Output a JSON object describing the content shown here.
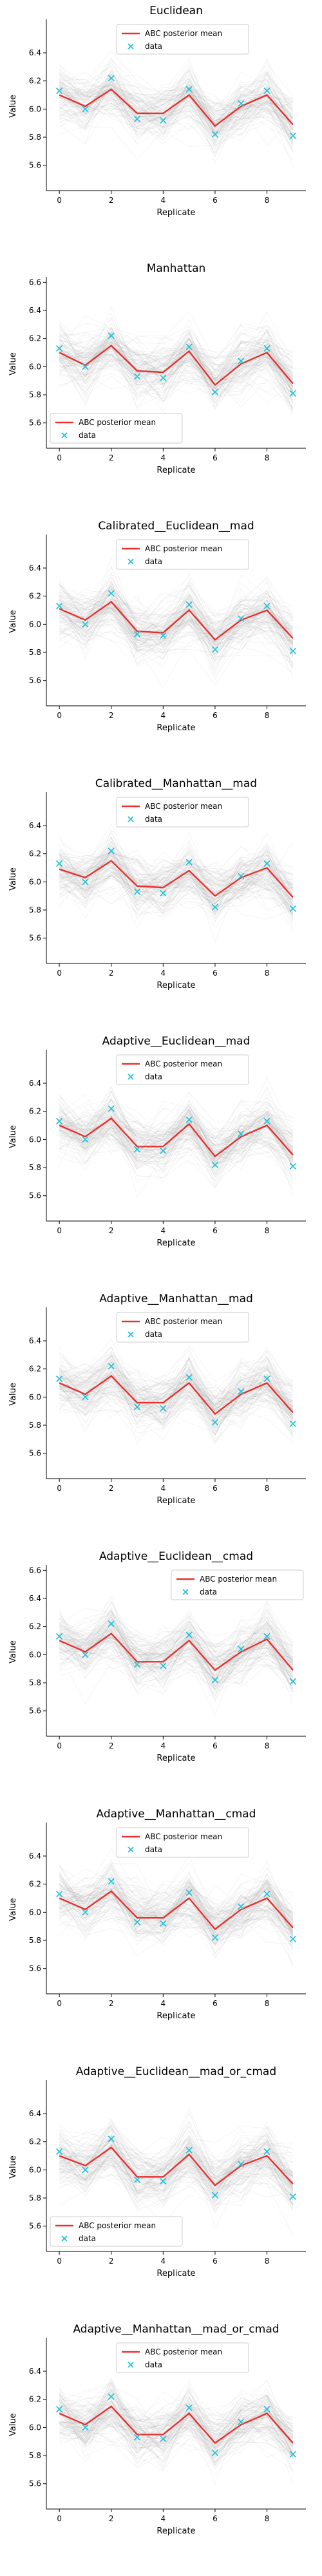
{
  "figure": {
    "ylabel": "Value",
    "xlabel": "Replicate",
    "legend_mean": "ABC posterior mean",
    "legend_data": "data",
    "colors": {
      "mean": "#e8312f",
      "data": "#29c3d9",
      "band": "#9a9a9a"
    }
  },
  "chart_data": [
    {
      "type": "line",
      "title": "Euclidean",
      "xlabel": "Replicate",
      "ylabel": "Value",
      "x": [
        0,
        1,
        2,
        3,
        4,
        5,
        6,
        7,
        8,
        9
      ],
      "series": [
        {
          "name": "ABC posterior mean",
          "values": [
            6.1,
            6.02,
            6.14,
            5.97,
            5.97,
            6.1,
            5.88,
            6.02,
            6.1,
            5.89
          ]
        },
        {
          "name": "data",
          "values": [
            6.13,
            6.0,
            6.22,
            5.93,
            5.92,
            6.14,
            5.82,
            6.04,
            6.13,
            5.81
          ]
        }
      ],
      "ylim": [
        5.42,
        6.62
      ],
      "yticks": [
        5.6,
        5.8,
        6.0,
        6.2,
        6.4
      ],
      "xticks": [
        0,
        2,
        4,
        6,
        8
      ],
      "legend": "top-center"
    },
    {
      "type": "line",
      "title": "Manhattan",
      "xlabel": "Replicate",
      "ylabel": "Value",
      "x": [
        0,
        1,
        2,
        3,
        4,
        5,
        6,
        7,
        8,
        9
      ],
      "series": [
        {
          "name": "ABC posterior mean",
          "values": [
            6.1,
            6.01,
            6.15,
            5.97,
            5.96,
            6.11,
            5.87,
            6.02,
            6.1,
            5.88
          ]
        },
        {
          "name": "data",
          "values": [
            6.13,
            6.0,
            6.22,
            5.93,
            5.92,
            6.14,
            5.82,
            6.04,
            6.13,
            5.81
          ]
        }
      ],
      "ylim": [
        5.42,
        6.62
      ],
      "yticks": [
        5.6,
        5.8,
        6.0,
        6.2,
        6.4,
        6.6
      ],
      "xticks": [
        0,
        2,
        4,
        6,
        8
      ],
      "legend": "lower-left"
    },
    {
      "type": "line",
      "title": "Calibrated__Euclidean__mad",
      "xlabel": "Replicate",
      "ylabel": "Value",
      "x": [
        0,
        1,
        2,
        3,
        4,
        5,
        6,
        7,
        8,
        9
      ],
      "series": [
        {
          "name": "ABC posterior mean",
          "values": [
            6.11,
            6.03,
            6.16,
            5.95,
            5.94,
            6.1,
            5.89,
            6.03,
            6.1,
            5.9
          ]
        },
        {
          "name": "data",
          "values": [
            6.13,
            6.0,
            6.22,
            5.93,
            5.92,
            6.14,
            5.82,
            6.04,
            6.13,
            5.81
          ]
        }
      ],
      "ylim": [
        5.42,
        6.62
      ],
      "yticks": [
        5.6,
        5.8,
        6.0,
        6.2,
        6.4
      ],
      "xticks": [
        0,
        2,
        4,
        6,
        8
      ],
      "legend": "top-center"
    },
    {
      "type": "line",
      "title": "Calibrated__Manhattan__mad",
      "xlabel": "Replicate",
      "ylabel": "Value",
      "x": [
        0,
        1,
        2,
        3,
        4,
        5,
        6,
        7,
        8,
        9
      ],
      "series": [
        {
          "name": "ABC posterior mean",
          "values": [
            6.09,
            6.03,
            6.15,
            5.97,
            5.96,
            6.08,
            5.9,
            6.03,
            6.1,
            5.89
          ]
        },
        {
          "name": "data",
          "values": [
            6.13,
            6.0,
            6.22,
            5.93,
            5.92,
            6.14,
            5.82,
            6.04,
            6.13,
            5.81
          ]
        }
      ],
      "ylim": [
        5.42,
        6.62
      ],
      "yticks": [
        5.6,
        5.8,
        6.0,
        6.2,
        6.4
      ],
      "xticks": [
        0,
        2,
        4,
        6,
        8
      ],
      "legend": "top-center"
    },
    {
      "type": "line",
      "title": "Adaptive__Euclidean__mad",
      "xlabel": "Replicate",
      "ylabel": "Value",
      "x": [
        0,
        1,
        2,
        3,
        4,
        5,
        6,
        7,
        8,
        9
      ],
      "series": [
        {
          "name": "ABC posterior mean",
          "values": [
            6.1,
            6.02,
            6.15,
            5.95,
            5.95,
            6.11,
            5.88,
            6.02,
            6.1,
            5.89
          ]
        },
        {
          "name": "data",
          "values": [
            6.13,
            6.0,
            6.22,
            5.93,
            5.92,
            6.14,
            5.82,
            6.04,
            6.13,
            5.81
          ]
        }
      ],
      "ylim": [
        5.42,
        6.62
      ],
      "yticks": [
        5.6,
        5.8,
        6.0,
        6.2,
        6.4
      ],
      "xticks": [
        0,
        2,
        4,
        6,
        8
      ],
      "legend": "top-center"
    },
    {
      "type": "line",
      "title": "Adaptive__Manhattan__mad",
      "xlabel": "Replicate",
      "ylabel": "Value",
      "x": [
        0,
        1,
        2,
        3,
        4,
        5,
        6,
        7,
        8,
        9
      ],
      "series": [
        {
          "name": "ABC posterior mean",
          "values": [
            6.1,
            6.02,
            6.15,
            5.96,
            5.96,
            6.1,
            5.88,
            6.02,
            6.1,
            5.89
          ]
        },
        {
          "name": "data",
          "values": [
            6.13,
            6.0,
            6.22,
            5.93,
            5.92,
            6.14,
            5.82,
            6.04,
            6.13,
            5.81
          ]
        }
      ],
      "ylim": [
        5.42,
        6.62
      ],
      "yticks": [
        5.6,
        5.8,
        6.0,
        6.2,
        6.4
      ],
      "xticks": [
        0,
        2,
        4,
        6,
        8
      ],
      "legend": "top-center"
    },
    {
      "type": "line",
      "title": "Adaptive__Euclidean__cmad",
      "xlabel": "Replicate",
      "ylabel": "Value",
      "x": [
        0,
        1,
        2,
        3,
        4,
        5,
        6,
        7,
        8,
        9
      ],
      "series": [
        {
          "name": "ABC posterior mean",
          "values": [
            6.1,
            6.02,
            6.15,
            5.95,
            5.95,
            6.1,
            5.89,
            6.02,
            6.11,
            5.89
          ]
        },
        {
          "name": "data",
          "values": [
            6.13,
            6.0,
            6.22,
            5.93,
            5.92,
            6.14,
            5.82,
            6.04,
            6.13,
            5.81
          ]
        }
      ],
      "ylim": [
        5.42,
        6.62
      ],
      "yticks": [
        5.6,
        5.8,
        6.0,
        6.2,
        6.4,
        6.6
      ],
      "xticks": [
        0,
        2,
        4,
        6,
        8
      ],
      "legend": "upper-right"
    },
    {
      "type": "line",
      "title": "Adaptive__Manhattan__cmad",
      "xlabel": "Replicate",
      "ylabel": "Value",
      "x": [
        0,
        1,
        2,
        3,
        4,
        5,
        6,
        7,
        8,
        9
      ],
      "series": [
        {
          "name": "ABC posterior mean",
          "values": [
            6.1,
            6.02,
            6.15,
            5.96,
            5.96,
            6.1,
            5.88,
            6.02,
            6.1,
            5.89
          ]
        },
        {
          "name": "data",
          "values": [
            6.13,
            6.0,
            6.22,
            5.93,
            5.92,
            6.14,
            5.82,
            6.04,
            6.13,
            5.81
          ]
        }
      ],
      "ylim": [
        5.42,
        6.62
      ],
      "yticks": [
        5.6,
        5.8,
        6.0,
        6.2,
        6.4
      ],
      "xticks": [
        0,
        2,
        4,
        6,
        8
      ],
      "legend": "top-center"
    },
    {
      "type": "line",
      "title": "Adaptive__Euclidean__mad_or_cmad",
      "xlabel": "Replicate",
      "ylabel": "Value",
      "x": [
        0,
        1,
        2,
        3,
        4,
        5,
        6,
        7,
        8,
        9
      ],
      "series": [
        {
          "name": "ABC posterior mean",
          "values": [
            6.1,
            6.03,
            6.16,
            5.95,
            5.95,
            6.11,
            5.89,
            6.03,
            6.1,
            5.9
          ]
        },
        {
          "name": "data",
          "values": [
            6.13,
            6.0,
            6.22,
            5.93,
            5.92,
            6.14,
            5.82,
            6.04,
            6.13,
            5.81
          ]
        }
      ],
      "ylim": [
        5.42,
        6.62
      ],
      "yticks": [
        5.6,
        5.8,
        6.0,
        6.2,
        6.4
      ],
      "xticks": [
        0,
        2,
        4,
        6,
        8
      ],
      "legend": "lower-left"
    },
    {
      "type": "line",
      "title": "Adaptive__Manhattan__mad_or_cmad",
      "xlabel": "Replicate",
      "ylabel": "Value",
      "x": [
        0,
        1,
        2,
        3,
        4,
        5,
        6,
        7,
        8,
        9
      ],
      "series": [
        {
          "name": "ABC posterior mean",
          "values": [
            6.1,
            6.02,
            6.15,
            5.95,
            5.95,
            6.1,
            5.89,
            6.02,
            6.1,
            5.89
          ]
        },
        {
          "name": "data",
          "values": [
            6.13,
            6.0,
            6.22,
            5.93,
            5.92,
            6.14,
            5.82,
            6.04,
            6.13,
            5.81
          ]
        }
      ],
      "ylim": [
        5.42,
        6.62
      ],
      "yticks": [
        5.6,
        5.8,
        6.0,
        6.2,
        6.4
      ],
      "xticks": [
        0,
        2,
        4,
        6,
        8
      ],
      "legend": "top-center"
    }
  ]
}
